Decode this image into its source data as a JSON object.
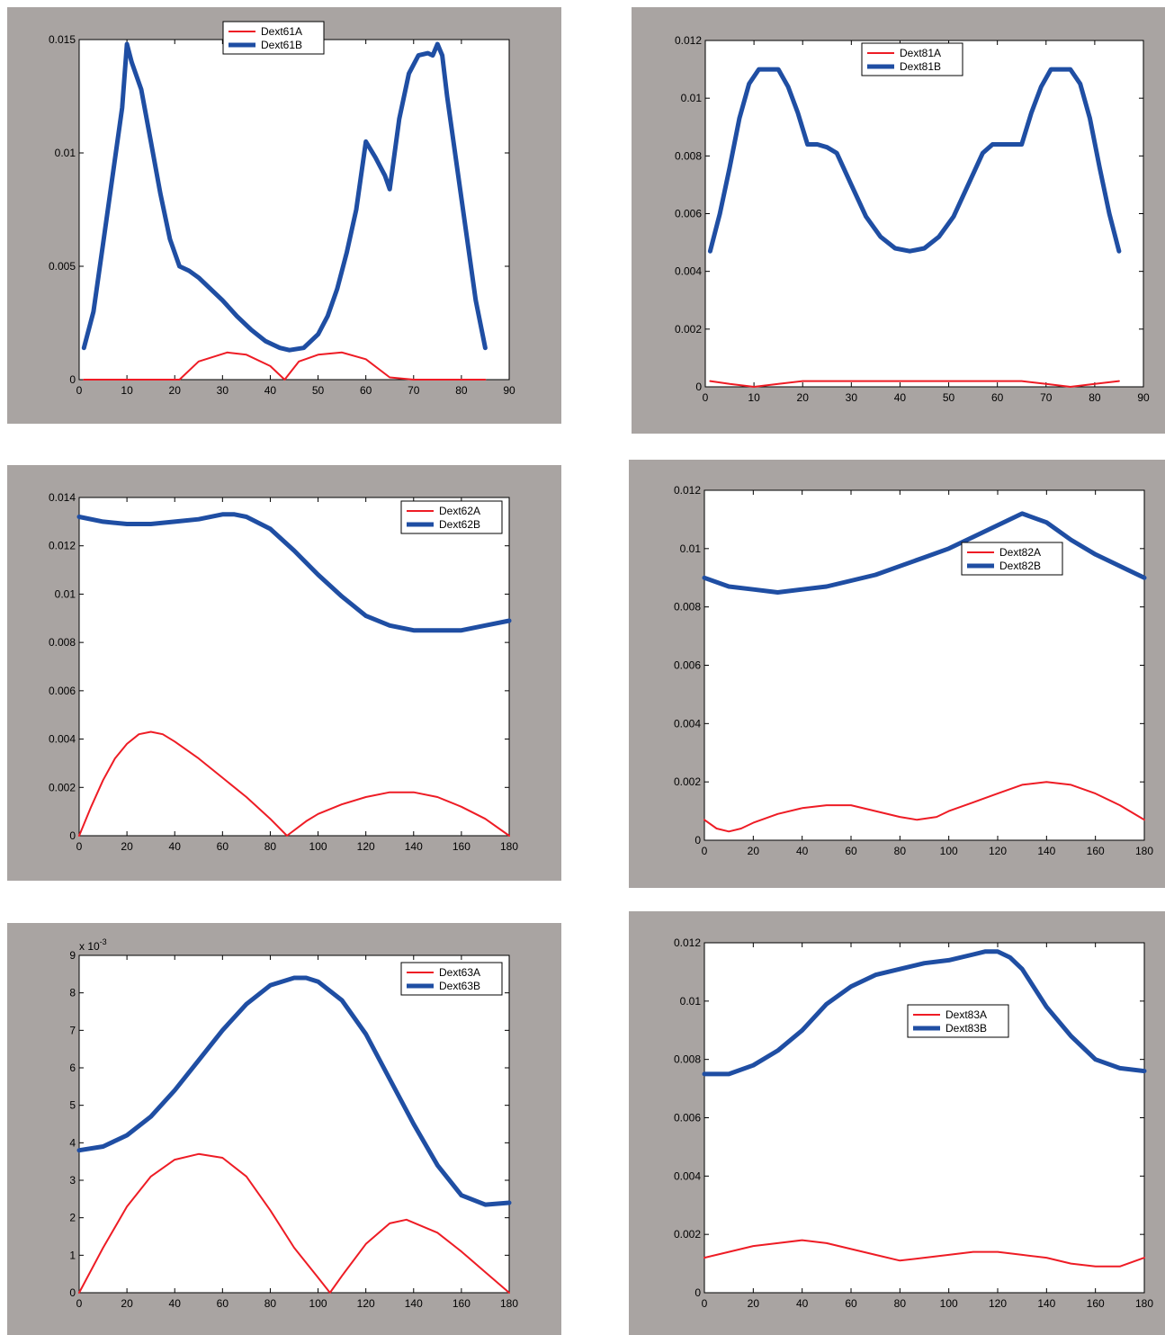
{
  "colors": {
    "frame": "#a9a4a2",
    "axes_bg": "#ffffff",
    "series_a": "#ee1c25",
    "series_b": "#1f4ea3"
  },
  "chart_data": [
    {
      "type": "line",
      "xlim": [
        0,
        90
      ],
      "ylim": [
        0,
        0.015
      ],
      "xticks": [
        0,
        10,
        20,
        30,
        40,
        50,
        60,
        70,
        80,
        90
      ],
      "yticks": [
        0,
        0.005,
        0.01,
        0.015
      ],
      "ytick_labels": [
        "0",
        "0.005",
        "0.01",
        "0.015"
      ],
      "exponent_label": "",
      "legend_position": "upper-center",
      "series": [
        {
          "name": "Dext61A",
          "x": [
            1,
            5,
            10,
            15,
            20,
            21,
            25,
            31,
            35,
            40,
            43,
            46,
            50,
            55,
            60,
            65,
            70,
            75,
            80,
            85
          ],
          "y": [
            0,
            0,
            0,
            0,
            0,
            0,
            0.0008,
            0.0012,
            0.0011,
            0.0006,
            0,
            0.0008,
            0.0011,
            0.0012,
            0.0009,
            0.0001,
            0,
            0,
            0,
            0
          ]
        },
        {
          "name": "Dext61B",
          "x": [
            1,
            3,
            5,
            7,
            9,
            10,
            11,
            13,
            15,
            17,
            19,
            21,
            23,
            25,
            27,
            30,
            33,
            36,
            39,
            42,
            44,
            47,
            50,
            52,
            54,
            56,
            58,
            60,
            62,
            64,
            65,
            67,
            69,
            71,
            73,
            74,
            75,
            76,
            77,
            79,
            81,
            83,
            85
          ],
          "y": [
            0.0014,
            0.003,
            0.006,
            0.009,
            0.012,
            0.0148,
            0.014,
            0.0128,
            0.0105,
            0.0082,
            0.0062,
            0.005,
            0.0048,
            0.0045,
            0.0041,
            0.0035,
            0.0028,
            0.0022,
            0.0017,
            0.0014,
            0.0013,
            0.0014,
            0.002,
            0.0028,
            0.004,
            0.0056,
            0.0075,
            0.0105,
            0.0098,
            0.009,
            0.0084,
            0.0115,
            0.0135,
            0.0143,
            0.0144,
            0.0143,
            0.0148,
            0.0143,
            0.0125,
            0.0095,
            0.0065,
            0.0035,
            0.0014
          ]
        }
      ]
    },
    {
      "type": "line",
      "xlim": [
        0,
        90
      ],
      "ylim": [
        0,
        0.012
      ],
      "xticks": [
        0,
        10,
        20,
        30,
        40,
        50,
        60,
        70,
        80,
        90
      ],
      "yticks": [
        0,
        0.002,
        0.004,
        0.006,
        0.008,
        0.01,
        0.012
      ],
      "ytick_labels": [
        "0",
        "0.002",
        "0.004",
        "0.006",
        "0.008",
        "0.01",
        "0.012"
      ],
      "exponent_label": "",
      "legend_position": "upper-center",
      "series": [
        {
          "name": "Dext81A",
          "x": [
            1,
            5,
            10,
            15,
            20,
            25,
            30,
            35,
            40,
            45,
            50,
            55,
            60,
            65,
            70,
            75,
            80,
            85
          ],
          "y": [
            0.0002,
            0.0001,
            0.0,
            0.0001,
            0.0002,
            0.0002,
            0.0002,
            0.0002,
            0.0002,
            0.0002,
            0.0002,
            0.0002,
            0.0002,
            0.0002,
            0.0001,
            0.0,
            0.0001,
            0.0002
          ]
        },
        {
          "name": "Dext81B",
          "x": [
            1,
            3,
            5,
            7,
            9,
            11,
            13,
            15,
            17,
            19,
            21,
            23,
            25,
            27,
            30,
            33,
            36,
            39,
            42,
            45,
            48,
            51,
            54,
            57,
            59,
            61,
            63,
            65,
            67,
            69,
            71,
            73,
            75,
            77,
            79,
            81,
            83,
            85
          ],
          "y": [
            0.0047,
            0.006,
            0.0076,
            0.0093,
            0.0105,
            0.011,
            0.011,
            0.011,
            0.0104,
            0.0095,
            0.0084,
            0.0084,
            0.0083,
            0.0081,
            0.007,
            0.0059,
            0.0052,
            0.0048,
            0.0047,
            0.0048,
            0.0052,
            0.0059,
            0.007,
            0.0081,
            0.0084,
            0.0084,
            0.0084,
            0.0084,
            0.0095,
            0.0104,
            0.011,
            0.011,
            0.011,
            0.0105,
            0.0093,
            0.0076,
            0.006,
            0.0047
          ]
        }
      ]
    },
    {
      "type": "line",
      "xlim": [
        0,
        180
      ],
      "ylim": [
        0,
        0.014
      ],
      "xticks": [
        0,
        20,
        40,
        60,
        80,
        100,
        120,
        140,
        160,
        180
      ],
      "yticks": [
        0,
        0.002,
        0.004,
        0.006,
        0.008,
        0.01,
        0.012,
        0.014
      ],
      "ytick_labels": [
        "0",
        "0.002",
        "0.004",
        "0.006",
        "0.008",
        "0.01",
        "0.012",
        "0.014"
      ],
      "exponent_label": "",
      "legend_position": "upper-right",
      "series": [
        {
          "name": "Dext62A",
          "x": [
            0,
            5,
            10,
            15,
            20,
            25,
            30,
            35,
            40,
            50,
            60,
            70,
            80,
            87,
            95,
            100,
            110,
            120,
            130,
            140,
            150,
            160,
            170,
            180
          ],
          "y": [
            0,
            0.0012,
            0.0023,
            0.0032,
            0.0038,
            0.0042,
            0.0043,
            0.0042,
            0.0039,
            0.0032,
            0.0024,
            0.0016,
            0.0007,
            0,
            0.0006,
            0.0009,
            0.0013,
            0.0016,
            0.0018,
            0.0018,
            0.0016,
            0.0012,
            0.0007,
            0
          ]
        },
        {
          "name": "Dext62B",
          "x": [
            0,
            10,
            20,
            30,
            40,
            50,
            60,
            65,
            70,
            80,
            90,
            100,
            110,
            120,
            130,
            140,
            150,
            160,
            170,
            180
          ],
          "y": [
            0.0132,
            0.013,
            0.0129,
            0.0129,
            0.013,
            0.0131,
            0.0133,
            0.0133,
            0.0132,
            0.0127,
            0.0118,
            0.0108,
            0.0099,
            0.0091,
            0.0087,
            0.0085,
            0.0085,
            0.0085,
            0.0087,
            0.0089
          ]
        }
      ]
    },
    {
      "type": "line",
      "xlim": [
        0,
        180
      ],
      "ylim": [
        0,
        0.012
      ],
      "xticks": [
        0,
        20,
        40,
        60,
        80,
        100,
        120,
        140,
        160,
        180
      ],
      "yticks": [
        0,
        0.002,
        0.004,
        0.006,
        0.008,
        0.01,
        0.012
      ],
      "ytick_labels": [
        "0",
        "0.002",
        "0.004",
        "0.006",
        "0.008",
        "0.01",
        "0.012"
      ],
      "exponent_label": "",
      "legend_position": "right-center",
      "series": [
        {
          "name": "Dext82A",
          "x": [
            0,
            5,
            10,
            15,
            20,
            30,
            40,
            50,
            60,
            70,
            80,
            87,
            95,
            100,
            110,
            120,
            130,
            140,
            150,
            160,
            170,
            180
          ],
          "y": [
            0.0007,
            0.0004,
            0.0003,
            0.0004,
            0.0006,
            0.0009,
            0.0011,
            0.0012,
            0.0012,
            0.001,
            0.0008,
            0.0007,
            0.0008,
            0.001,
            0.0013,
            0.0016,
            0.0019,
            0.002,
            0.0019,
            0.0016,
            0.0012,
            0.0007
          ]
        },
        {
          "name": "Dext82B",
          "x": [
            0,
            10,
            20,
            30,
            40,
            50,
            60,
            70,
            80,
            90,
            100,
            110,
            120,
            130,
            140,
            150,
            160,
            170,
            180
          ],
          "y": [
            0.009,
            0.0087,
            0.0086,
            0.0085,
            0.0086,
            0.0087,
            0.0089,
            0.0091,
            0.0094,
            0.0097,
            0.01,
            0.0104,
            0.0108,
            0.0112,
            0.0109,
            0.0103,
            0.0098,
            0.0094,
            0.009
          ]
        }
      ]
    },
    {
      "type": "line",
      "xlim": [
        0,
        180
      ],
      "ylim": [
        0,
        9
      ],
      "xticks": [
        0,
        20,
        40,
        60,
        80,
        100,
        120,
        140,
        160,
        180
      ],
      "yticks": [
        0,
        1,
        2,
        3,
        4,
        5,
        6,
        7,
        8,
        9
      ],
      "ytick_labels": [
        "0",
        "1",
        "2",
        "3",
        "4",
        "5",
        "6",
        "7",
        "8",
        "9"
      ],
      "exponent_label": "x 10",
      "exponent_sup": "-3",
      "legend_position": "upper-right",
      "series": [
        {
          "name": "Dext63A",
          "x": [
            0,
            10,
            20,
            30,
            40,
            50,
            60,
            70,
            80,
            90,
            100,
            105,
            110,
            120,
            130,
            137,
            150,
            160,
            170,
            180
          ],
          "y": [
            0,
            1.2,
            2.3,
            3.1,
            3.55,
            3.7,
            3.6,
            3.1,
            2.2,
            1.2,
            0.4,
            0,
            0.45,
            1.3,
            1.85,
            1.95,
            1.6,
            1.1,
            0.55,
            0
          ]
        },
        {
          "name": "Dext63B",
          "x": [
            0,
            10,
            20,
            30,
            40,
            50,
            60,
            70,
            80,
            90,
            95,
            100,
            110,
            120,
            130,
            140,
            150,
            160,
            170,
            180
          ],
          "y": [
            3.8,
            3.9,
            4.2,
            4.7,
            5.4,
            6.2,
            7.0,
            7.7,
            8.2,
            8.4,
            8.4,
            8.3,
            7.8,
            6.9,
            5.7,
            4.5,
            3.4,
            2.6,
            2.35,
            2.4
          ]
        }
      ]
    },
    {
      "type": "line",
      "xlim": [
        0,
        180
      ],
      "ylim": [
        0,
        0.012
      ],
      "xticks": [
        0,
        20,
        40,
        60,
        80,
        100,
        120,
        140,
        160,
        180
      ],
      "yticks": [
        0,
        0.002,
        0.004,
        0.006,
        0.008,
        0.01,
        0.012
      ],
      "ytick_labels": [
        "0",
        "0.002",
        "0.004",
        "0.006",
        "0.008",
        "0.01",
        "0.012"
      ],
      "exponent_label": "",
      "legend_position": "center",
      "series": [
        {
          "name": "Dext83A",
          "x": [
            0,
            10,
            20,
            30,
            40,
            50,
            60,
            70,
            80,
            90,
            100,
            110,
            120,
            130,
            140,
            150,
            160,
            170,
            180
          ],
          "y": [
            0.0012,
            0.0014,
            0.0016,
            0.0017,
            0.0018,
            0.0017,
            0.0015,
            0.0013,
            0.0011,
            0.0012,
            0.0013,
            0.0014,
            0.0014,
            0.0013,
            0.0012,
            0.001,
            0.0009,
            0.0009,
            0.0012
          ]
        },
        {
          "name": "Dext83B",
          "x": [
            0,
            10,
            20,
            30,
            40,
            50,
            60,
            70,
            80,
            90,
            100,
            110,
            115,
            120,
            125,
            130,
            140,
            150,
            160,
            170,
            180
          ],
          "y": [
            0.0075,
            0.0075,
            0.0078,
            0.0083,
            0.009,
            0.0099,
            0.0105,
            0.0109,
            0.0111,
            0.0113,
            0.0114,
            0.0116,
            0.0117,
            0.0117,
            0.0115,
            0.0111,
            0.0098,
            0.0088,
            0.008,
            0.0077,
            0.0076
          ]
        }
      ]
    }
  ]
}
